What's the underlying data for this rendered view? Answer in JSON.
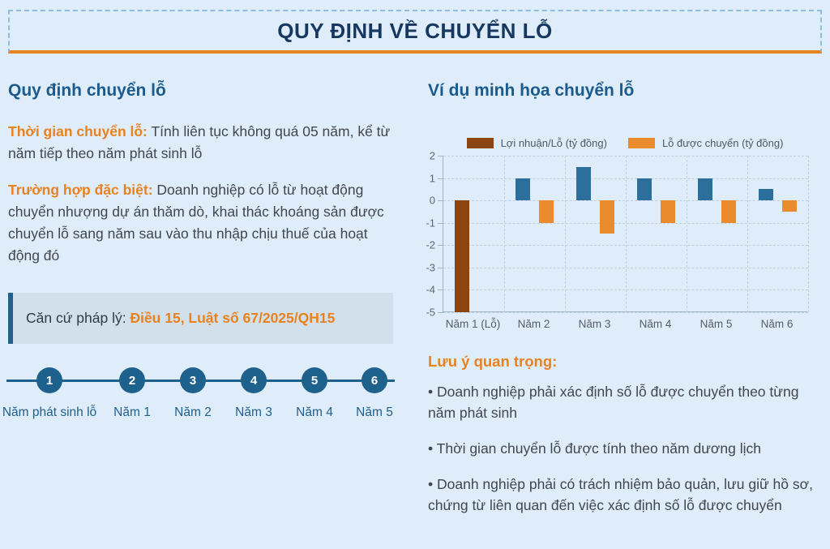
{
  "header": {
    "title": "QUY ĐỊNH VỀ CHUYỂN LỖ"
  },
  "left": {
    "heading": "Quy định chuyển lỗ",
    "rule1": {
      "label": "Thời gian chuyển lỗ:",
      "text": " Tính liên tục không quá 05 năm, kể từ năm tiếp theo năm phát sinh lỗ"
    },
    "rule2": {
      "label": "Trường hợp đặc biệt:",
      "text": " Doanh nghiệp có lỗ từ hoạt động chuyển nhượng dự án thăm dò, khai thác khoáng sản được chuyển lỗ sang năm sau vào thu nhập chịu thuế của hoạt động đó"
    },
    "legal": {
      "label": "Căn cứ pháp lý: ",
      "reference": "Điều 15, Luật số 67/2025/QH15"
    },
    "timeline": {
      "items": [
        {
          "number": "1",
          "label": "Năm phát sinh lỗ"
        },
        {
          "number": "2",
          "label": "Năm 1"
        },
        {
          "number": "3",
          "label": "Năm 2"
        },
        {
          "number": "4",
          "label": "Năm 3"
        },
        {
          "number": "5",
          "label": "Năm 4"
        },
        {
          "number": "6",
          "label": "Năm 5"
        }
      ]
    }
  },
  "right": {
    "heading": "Ví dụ minh họa chuyển lỗ",
    "notes": {
      "heading": "Lưu ý quan trọng:",
      "items": [
        "• Doanh nghiệp phải xác định số lỗ được chuyển theo từng năm phát sinh",
        "• Thời gian chuyển lỗ được tính theo năm dương lịch",
        "• Doanh nghiệp phải có trách nhiệm bảo quản, lưu giữ hồ sơ, chứng từ liên quan đến việc xác định số lỗ được chuyển"
      ]
    }
  },
  "chart_data": {
    "type": "bar",
    "categories": [
      "Năm 1 (Lỗ)",
      "Năm 2",
      "Năm 3",
      "Năm 4",
      "Năm 5",
      "Năm 6"
    ],
    "series": [
      {
        "name": "Lợi nhuận/Lỗ (tỷ đồng)",
        "values": [
          -5,
          1,
          1.5,
          1,
          1,
          0.5
        ],
        "colors": [
          "#8B4513",
          "#2C6F9D",
          "#2C6F9D",
          "#2C6F9D",
          "#2C6F9D",
          "#2C6F9D"
        ],
        "legend_color": "#8B4513"
      },
      {
        "name": "Lỗ được chuyển (tỷ đồng)",
        "values": [
          null,
          -1,
          -1.5,
          -1,
          -1,
          -0.5
        ],
        "colors": [
          "#EA8C2E",
          "#EA8C2E",
          "#EA8C2E",
          "#EA8C2E",
          "#EA8C2E",
          "#EA8C2E"
        ],
        "legend_color": "#EA8C2E"
      }
    ],
    "title": "",
    "xlabel": "",
    "ylabel": "",
    "ylim": [
      -5,
      2
    ],
    "yticks": [
      2,
      1,
      0,
      -1,
      -2,
      -3,
      -4,
      -5
    ],
    "grid": true,
    "legend_position": "top"
  },
  "colors": {
    "page_background": "#DFECFA",
    "title_navy": "#16375F",
    "heading_blue": "#1A5A8C",
    "accent_orange": "#E8821F",
    "timeline_blue": "#1F618D",
    "legal_box_background": "#D2E0EB",
    "bar_brown": "#8B4513",
    "bar_blue": "#2C6F9D",
    "bar_orange": "#EA8C2E"
  }
}
